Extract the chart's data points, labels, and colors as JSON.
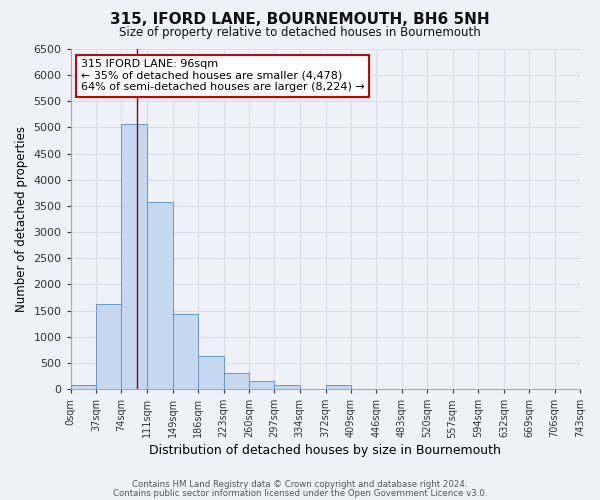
{
  "title": "315, IFORD LANE, BOURNEMOUTH, BH6 5NH",
  "subtitle": "Size of property relative to detached houses in Bournemouth",
  "xlabel": "Distribution of detached houses by size in Bournemouth",
  "ylabel": "Number of detached properties",
  "bin_edges": [
    0,
    37,
    74,
    111,
    149,
    186,
    223,
    260,
    297,
    334,
    372,
    409,
    446,
    483,
    520,
    557,
    594,
    632,
    669,
    706,
    743
  ],
  "bar_heights": [
    75,
    1625,
    5075,
    3575,
    1425,
    625,
    300,
    150,
    75,
    0,
    75,
    0,
    0,
    0,
    0,
    0,
    0,
    0,
    0,
    0
  ],
  "bar_color": "#c5d8ef",
  "bar_edge_color": "#6699cc",
  "vline_color": "#990000",
  "vline_x": 96,
  "annotation_title": "315 IFORD LANE: 96sqm",
  "annotation_line1": "← 35% of detached houses are smaller (4,478)",
  "annotation_line2": "64% of semi-detached houses are larger (8,224) →",
  "annotation_box_color": "#ffffff",
  "annotation_box_edge": "#cc0000",
  "ylim": [
    0,
    6500
  ],
  "yticks": [
    0,
    500,
    1000,
    1500,
    2000,
    2500,
    3000,
    3500,
    4000,
    4500,
    5000,
    5500,
    6000,
    6500
  ],
  "footer_line1": "Contains HM Land Registry data © Crown copyright and database right 2024.",
  "footer_line2": "Contains public sector information licensed under the Open Government Licence v3.0.",
  "bg_color": "#eef2f8",
  "grid_color": "#d8dce8",
  "plot_bg": "#eef2f8"
}
